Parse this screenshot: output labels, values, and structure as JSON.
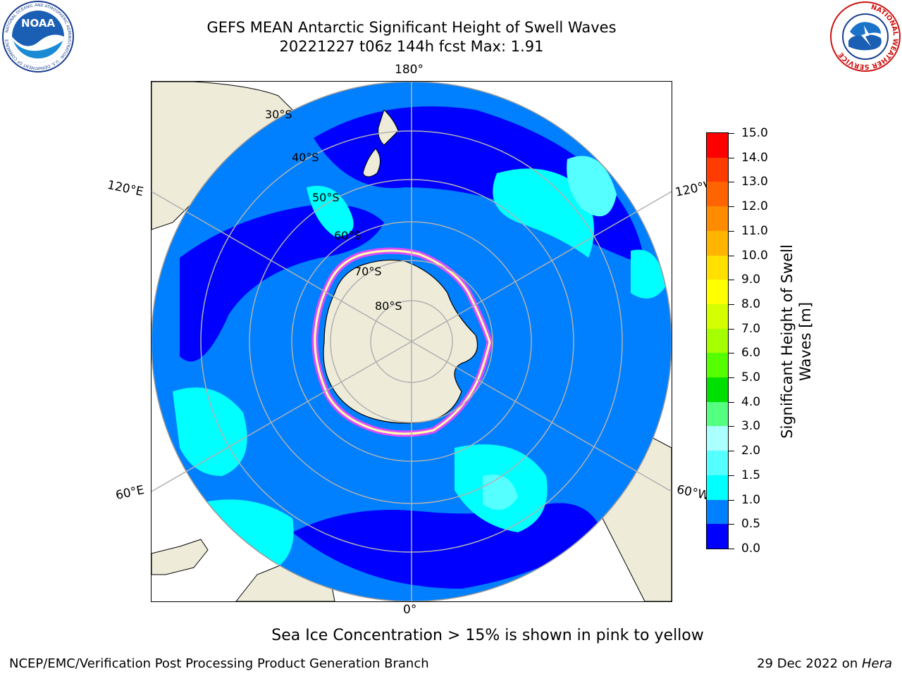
{
  "header": {
    "title_line1": "GEFS MEAN Antarctic Significant Height of Swell Waves",
    "title_line2": "20221227 t06z 144h fcst   Max: 1.91"
  },
  "map": {
    "longitude_labels": {
      "top": "180°",
      "bottom": "0°",
      "left_upper": "120°E",
      "left_lower": "60°E",
      "right_upper": "120°W",
      "right_lower": "60°W"
    },
    "latitude_labels": [
      "30°S",
      "40°S",
      "50°S",
      "60°S",
      "70°S",
      "80°S"
    ],
    "colors": {
      "land": "#eeecd9",
      "ocean_outside": "#ffffff"
    }
  },
  "colorbar": {
    "title_line1": "Significant Height of Swell",
    "title_line2": "Waves [m]",
    "tick_labels": [
      "15.0",
      "14.0",
      "13.0",
      "12.0",
      "11.0",
      "10.0",
      "9.0",
      "8.0",
      "7.0",
      "6.0",
      "5.0",
      "4.0",
      "3.0",
      "2.0",
      "1.5",
      "1.0",
      "0.5",
      "0.0"
    ],
    "colors_bottom_to_top": [
      "#0000ff",
      "#0080ff",
      "#00ffff",
      "#55ffff",
      "#aaffff",
      "#55ff80",
      "#00e000",
      "#55ff00",
      "#a6ff00",
      "#d4ff00",
      "#ffff00",
      "#ffe000",
      "#ffb400",
      "#ff8c00",
      "#ff6400",
      "#ff3c00",
      "#ff0000"
    ]
  },
  "notes": {
    "sea_ice": "Sea Ice Concentration > 15% is shown in pink to yellow"
  },
  "footer": {
    "left": "NCEP/EMC/Verification Post Processing Product Generation Branch",
    "right_prefix": "29 Dec 2022 on ",
    "right_host": "Hera"
  },
  "logos": {
    "noaa": "NOAA",
    "noaa_ring": "NATIONAL OCEANIC AND ATMOSPHERIC ADMINISTRATION · U.S. DEPARTMENT OF COMMERCE",
    "nws_ring": "NATIONAL WEATHER SERVICE"
  }
}
